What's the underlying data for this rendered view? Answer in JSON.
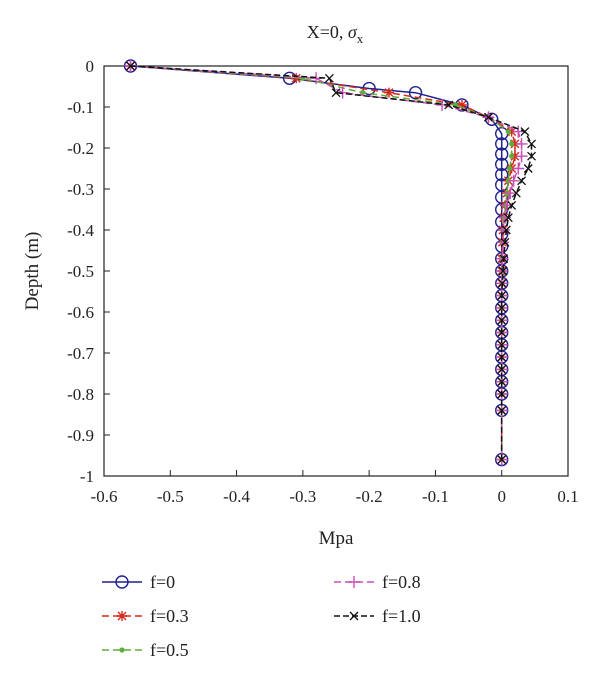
{
  "chart_data": {
    "type": "line",
    "title": "X=0, σx",
    "xlabel": "Mpa",
    "ylabel": "Depth (m)",
    "xlim": [
      -0.6,
      0.1
    ],
    "ylim": [
      -1,
      0
    ],
    "xticks": [
      -0.6,
      -0.5,
      -0.4,
      -0.3,
      -0.2,
      -0.1,
      0,
      0.1
    ],
    "xtick_labels": [
      "-0.6",
      "-0.5",
      "-0.4",
      "-0.3",
      "-0.2",
      "-0.1",
      "0",
      "0.1"
    ],
    "yticks": [
      0,
      -0.1,
      -0.2,
      -0.3,
      -0.4,
      -0.5,
      -0.6,
      -0.7,
      -0.8,
      -0.9,
      -1
    ],
    "ytick_labels": [
      "0",
      "-0.1",
      "-0.2",
      "-0.3",
      "-0.4",
      "-0.5",
      "-0.6",
      "-0.7",
      "-0.8",
      "-0.9",
      "-1"
    ],
    "grid": false,
    "legend_position": "bottom",
    "series": [
      {
        "name": "f=0",
        "color": "#1f1f8f",
        "marker": "circle",
        "x": [
          -0.56,
          -0.32,
          -0.2,
          -0.13,
          -0.06,
          -0.015,
          0.0,
          0.0,
          0.0,
          0.0,
          0.0,
          0.0,
          0.0,
          0.0,
          0.0,
          0.0,
          0.0,
          0.0,
          0.0,
          0.0,
          0.0,
          0.0,
          0.0,
          0.0,
          0.0,
          0.0,
          0.0,
          0.0,
          0.0,
          0.0,
          0.0
        ],
        "y": [
          0.0,
          -0.03,
          -0.055,
          -0.065,
          -0.095,
          -0.13,
          -0.165,
          -0.19,
          -0.215,
          -0.24,
          -0.265,
          -0.29,
          -0.32,
          -0.35,
          -0.38,
          -0.41,
          -0.44,
          -0.47,
          -0.5,
          -0.53,
          -0.56,
          -0.59,
          -0.62,
          -0.65,
          -0.68,
          -0.71,
          -0.74,
          -0.77,
          -0.8,
          -0.84,
          -0.96
        ]
      },
      {
        "name": "f=0.3",
        "color": "#d62a1a",
        "marker": "star",
        "x": [
          -0.56,
          -0.31,
          -0.17,
          -0.06,
          -0.02,
          0.015,
          0.02,
          0.02,
          0.015,
          0.01,
          0.008,
          0.005,
          0.003,
          0.002,
          0.001,
          0.0,
          0.0,
          0.0,
          0.0,
          0.0,
          0.0,
          0.0,
          0.0,
          0.0,
          0.0,
          0.0,
          0.0,
          0.0,
          0.0
        ],
        "y": [
          0.0,
          -0.03,
          -0.065,
          -0.095,
          -0.125,
          -0.16,
          -0.19,
          -0.22,
          -0.25,
          -0.28,
          -0.31,
          -0.34,
          -0.37,
          -0.4,
          -0.43,
          -0.47,
          -0.5,
          -0.53,
          -0.56,
          -0.59,
          -0.62,
          -0.65,
          -0.68,
          -0.71,
          -0.74,
          -0.77,
          -0.8,
          -0.84,
          -0.96
        ]
      },
      {
        "name": "f=0.5",
        "color": "#5fae3a",
        "marker": "dot",
        "x": [
          -0.56,
          -0.3,
          -0.21,
          -0.07,
          -0.02,
          0.01,
          0.015,
          0.015,
          0.012,
          0.01,
          0.008,
          0.006,
          0.004,
          0.003,
          0.002,
          0.001,
          0.0,
          0.0,
          0.0,
          0.0,
          0.0,
          0.0,
          0.0,
          0.0,
          0.0,
          0.0,
          0.0,
          0.0,
          0.0
        ],
        "y": [
          0.0,
          -0.03,
          -0.065,
          -0.095,
          -0.125,
          -0.16,
          -0.19,
          -0.22,
          -0.25,
          -0.28,
          -0.31,
          -0.34,
          -0.37,
          -0.4,
          -0.43,
          -0.47,
          -0.5,
          -0.53,
          -0.56,
          -0.59,
          -0.62,
          -0.65,
          -0.68,
          -0.71,
          -0.74,
          -0.77,
          -0.8,
          -0.84,
          -0.96
        ]
      },
      {
        "name": "f=0.8",
        "color": "#c94fb8",
        "marker": "plus",
        "x": [
          -0.56,
          -0.28,
          -0.24,
          -0.09,
          -0.02,
          0.025,
          0.03,
          0.03,
          0.025,
          0.018,
          0.013,
          0.008,
          0.005,
          0.003,
          0.002,
          0.001,
          0.0,
          0.0,
          0.0,
          0.0,
          0.0,
          0.0,
          0.0,
          0.0,
          0.0,
          0.0,
          0.0,
          0.0,
          0.0
        ],
        "y": [
          0.0,
          -0.03,
          -0.065,
          -0.095,
          -0.125,
          -0.16,
          -0.19,
          -0.22,
          -0.25,
          -0.28,
          -0.31,
          -0.34,
          -0.37,
          -0.4,
          -0.43,
          -0.47,
          -0.5,
          -0.53,
          -0.56,
          -0.59,
          -0.62,
          -0.65,
          -0.68,
          -0.71,
          -0.74,
          -0.77,
          -0.8,
          -0.84,
          -0.96
        ]
      },
      {
        "name": "f=1.0",
        "color": "#111111",
        "marker": "x",
        "x": [
          -0.56,
          -0.26,
          -0.25,
          -0.08,
          -0.02,
          0.035,
          0.045,
          0.045,
          0.04,
          0.03,
          0.022,
          0.015,
          0.01,
          0.007,
          0.005,
          0.003,
          0.002,
          0.001,
          0.0,
          0.0,
          0.0,
          0.0,
          0.0,
          0.0,
          0.0,
          0.0,
          0.0,
          0.0,
          0.0
        ],
        "y": [
          0.0,
          -0.03,
          -0.065,
          -0.095,
          -0.125,
          -0.16,
          -0.19,
          -0.22,
          -0.25,
          -0.28,
          -0.31,
          -0.34,
          -0.37,
          -0.4,
          -0.43,
          -0.47,
          -0.5,
          -0.53,
          -0.56,
          -0.59,
          -0.62,
          -0.65,
          -0.68,
          -0.71,
          -0.74,
          -0.77,
          -0.8,
          -0.84,
          -0.96
        ]
      }
    ]
  }
}
